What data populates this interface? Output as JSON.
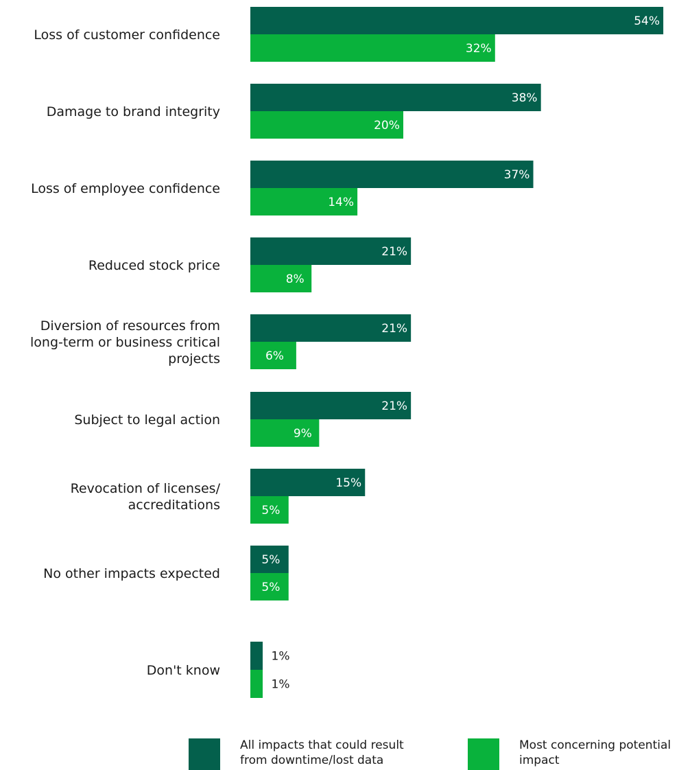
{
  "chart_data": {
    "type": "bar",
    "orientation": "horizontal",
    "categories": [
      [
        "Loss of customer confidence"
      ],
      [
        "Damage to brand integrity"
      ],
      [
        "Loss of employee confidence"
      ],
      [
        "Reduced stock price"
      ],
      [
        "Diversion of resources from",
        "long-term or business critical",
        "projects"
      ],
      [
        "Subject to legal action"
      ],
      [
        "Revocation of licenses/",
        "accreditations"
      ],
      [
        "No other impacts expected"
      ],
      [
        "Don't know"
      ]
    ],
    "series": [
      {
        "name": "All impacts that could result from downtime/lost data",
        "legend_lines": [
          "All impacts that could result",
          "from downtime/lost data"
        ],
        "color": "#04604c",
        "values": [
          54,
          38,
          37,
          21,
          21,
          21,
          15,
          5,
          1
        ],
        "labels": [
          "54%",
          "38%",
          "37%",
          "21%",
          "21%",
          "21%",
          "15%",
          "5%",
          "1%"
        ]
      },
      {
        "name": "Most concerning potential impact",
        "legend_lines": [
          "Most concerning potential",
          "impact"
        ],
        "color": "#09b23c",
        "values": [
          32,
          20,
          14,
          8,
          6,
          9,
          5,
          5,
          1
        ],
        "labels": [
          "32%",
          "20%",
          "14%",
          "8%",
          "6%",
          "9%",
          "5%",
          "5%",
          "1%"
        ]
      }
    ],
    "legend_position": "bottom",
    "grid": false,
    "xaxis_visible": false
  }
}
